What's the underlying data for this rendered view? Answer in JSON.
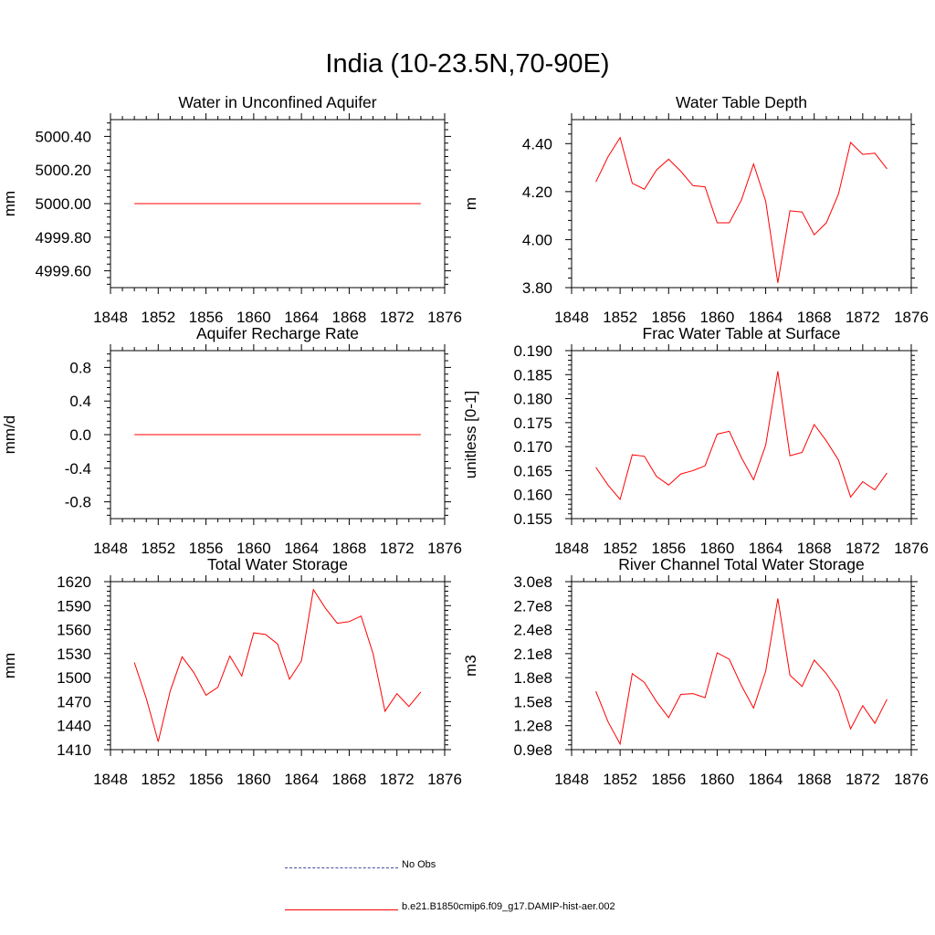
{
  "page_title": "India (10-23.5N,70-90E)",
  "colors": {
    "model_line": "#ff0000",
    "obs_line": "#4a4aa0",
    "axis": "#000000"
  },
  "legend": [
    {
      "label": "No Obs",
      "style": "dashed",
      "color": "#4a4aa0"
    },
    {
      "label": "b.e21.B1850cmip6.f09_g17.DAMIP-hist-aer.002",
      "style": "solid",
      "color": "#ff0000"
    }
  ],
  "chart_data": [
    {
      "type": "line",
      "title": "Water in Unconfined Aquifer",
      "ylabel": "mm",
      "xlim": [
        1848,
        1876
      ],
      "ylim": [
        4999.5,
        5000.5
      ],
      "yticks": [
        4999.6,
        4999.8,
        5000.0,
        5000.2,
        5000.4
      ],
      "ytick_labels": [
        "4999.60",
        "4999.80",
        "5000.00",
        "5000.20",
        "5000.40"
      ],
      "xticks": [
        1848,
        1852,
        1856,
        1860,
        1864,
        1868,
        1872,
        1876
      ],
      "x": [
        1850,
        1874
      ],
      "series": [
        {
          "values": [
            5000.0,
            5000.0
          ]
        }
      ]
    },
    {
      "type": "line",
      "title": "Water Table Depth",
      "ylabel": "m",
      "xlim": [
        1848,
        1876
      ],
      "ylim": [
        3.8,
        4.5
      ],
      "yticks": [
        3.8,
        4.0,
        4.2,
        4.4
      ],
      "ytick_labels": [
        "3.80",
        "4.00",
        "4.20",
        "4.40"
      ],
      "xticks": [
        1848,
        1852,
        1856,
        1860,
        1864,
        1868,
        1872,
        1876
      ],
      "x": [
        1850,
        1851,
        1852,
        1853,
        1854,
        1855,
        1856,
        1857,
        1858,
        1859,
        1860,
        1861,
        1862,
        1863,
        1864,
        1865,
        1866,
        1867,
        1868,
        1869,
        1870,
        1871,
        1872,
        1873,
        1874
      ],
      "series": [
        {
          "values": [
            4.24,
            4.345,
            4.425,
            4.235,
            4.21,
            4.29,
            4.335,
            4.285,
            4.225,
            4.22,
            4.07,
            4.07,
            4.165,
            4.315,
            4.16,
            3.82,
            4.12,
            4.115,
            4.02,
            4.07,
            4.19,
            4.405,
            4.355,
            4.36,
            4.295
          ]
        }
      ]
    },
    {
      "type": "line",
      "title": "Aquifer Recharge Rate",
      "ylabel": "mm/d",
      "xlim": [
        1848,
        1876
      ],
      "ylim": [
        -1.0,
        1.0
      ],
      "yticks": [
        -0.8,
        -0.4,
        0.0,
        0.4,
        0.8
      ],
      "ytick_labels": [
        "-0.8",
        "-0.4",
        "0.0",
        "0.4",
        "0.8"
      ],
      "xticks": [
        1848,
        1852,
        1856,
        1860,
        1864,
        1868,
        1872,
        1876
      ],
      "x": [
        1850,
        1874
      ],
      "series": [
        {
          "values": [
            0.0,
            0.0
          ]
        }
      ]
    },
    {
      "type": "line",
      "title": "Frac Water Table at Surface",
      "ylabel": "unitless [0-1]",
      "xlim": [
        1848,
        1876
      ],
      "ylim": [
        0.155,
        0.19
      ],
      "yticks": [
        0.155,
        0.16,
        0.165,
        0.17,
        0.175,
        0.18,
        0.185,
        0.19
      ],
      "ytick_labels": [
        "0.155",
        "0.160",
        "0.165",
        "0.170",
        "0.175",
        "0.180",
        "0.185",
        "0.190"
      ],
      "xticks": [
        1848,
        1852,
        1856,
        1860,
        1864,
        1868,
        1872,
        1876
      ],
      "x": [
        1850,
        1851,
        1852,
        1853,
        1854,
        1855,
        1856,
        1857,
        1858,
        1859,
        1860,
        1861,
        1862,
        1863,
        1864,
        1865,
        1866,
        1867,
        1868,
        1869,
        1870,
        1871,
        1872,
        1873,
        1874
      ],
      "series": [
        {
          "values": [
            0.1657,
            0.162,
            0.159,
            0.1683,
            0.168,
            0.1638,
            0.162,
            0.1643,
            0.165,
            0.166,
            0.1726,
            0.1732,
            0.1677,
            0.1631,
            0.1703,
            0.1857,
            0.1681,
            0.1688,
            0.1746,
            0.1712,
            0.1672,
            0.1595,
            0.1627,
            0.161,
            0.1645
          ]
        }
      ]
    },
    {
      "type": "line",
      "title": "Total Water Storage",
      "ylabel": "mm",
      "xlim": [
        1848,
        1876
      ],
      "ylim": [
        1410,
        1620
      ],
      "yticks": [
        1410,
        1440,
        1470,
        1500,
        1530,
        1560,
        1590,
        1620
      ],
      "ytick_labels": [
        "1410",
        "1440",
        "1470",
        "1500",
        "1530",
        "1560",
        "1590",
        "1620"
      ],
      "xticks": [
        1848,
        1852,
        1856,
        1860,
        1864,
        1868,
        1872,
        1876
      ],
      "x": [
        1850,
        1851,
        1852,
        1853,
        1854,
        1855,
        1856,
        1857,
        1858,
        1859,
        1860,
        1861,
        1862,
        1863,
        1864,
        1865,
        1866,
        1867,
        1868,
        1869,
        1870,
        1871,
        1872,
        1873,
        1874
      ],
      "series": [
        {
          "values": [
            1519,
            1474,
            1420,
            1483,
            1526,
            1506,
            1478,
            1488,
            1527,
            1502,
            1556,
            1554,
            1542,
            1498,
            1521,
            1610,
            1587,
            1568,
            1570,
            1577,
            1530,
            1458,
            1480,
            1464,
            1482
          ]
        }
      ]
    },
    {
      "type": "line",
      "title": "River Channel Total Water Storage",
      "ylabel": "m3",
      "xlim": [
        1848,
        1876
      ],
      "ylim": [
        90000000.0,
        300000000.0
      ],
      "yticks": [
        90000000.0,
        120000000.0,
        150000000.0,
        180000000.0,
        210000000.0,
        240000000.0,
        270000000.0,
        300000000.0
      ],
      "ytick_labels": [
        "0.9e8",
        "1.2e8",
        "1.5e8",
        "1.8e8",
        "2.1e8",
        "2.4e8",
        "2.7e8",
        "3.0e8"
      ],
      "xticks": [
        1848,
        1852,
        1856,
        1860,
        1864,
        1868,
        1872,
        1876
      ],
      "x": [
        1850,
        1851,
        1852,
        1853,
        1854,
        1855,
        1856,
        1857,
        1858,
        1859,
        1860,
        1861,
        1862,
        1863,
        1864,
        1865,
        1866,
        1867,
        1868,
        1869,
        1870,
        1871,
        1872,
        1873,
        1874
      ],
      "series": [
        {
          "values": [
            163000000.0,
            125000000.0,
            97000000.0,
            185000000.0,
            174000000.0,
            150000000.0,
            130000000.0,
            159000000.0,
            160000000.0,
            155000000.0,
            211000000.0,
            203000000.0,
            170000000.0,
            142000000.0,
            188000000.0,
            279000000.0,
            183000000.0,
            169000000.0,
            202000000.0,
            185000000.0,
            163000000.0,
            116000000.0,
            145000000.0,
            123000000.0,
            153000000.0
          ]
        }
      ]
    }
  ]
}
